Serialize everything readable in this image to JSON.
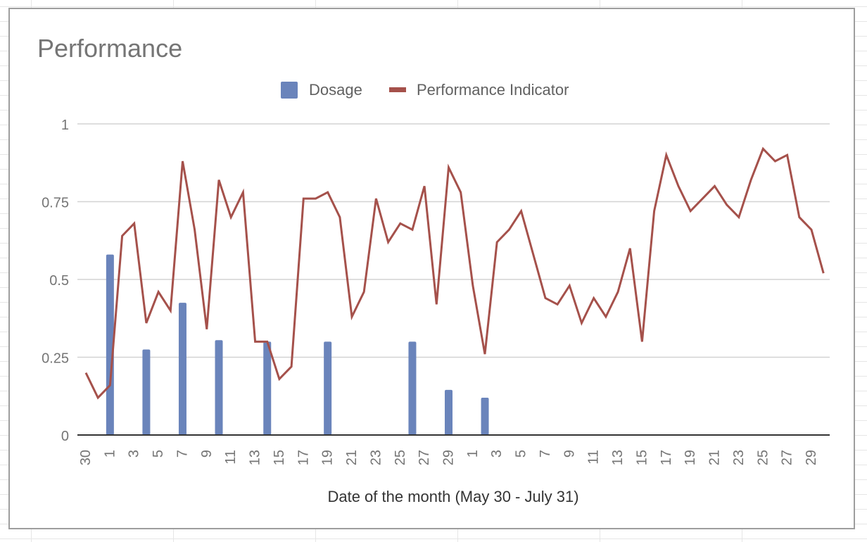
{
  "chart_data": {
    "type": "bar+line",
    "title": "Performance",
    "xlabel": "Date of the month (May 30 - July 31)",
    "ylabel": "",
    "ylim": [
      0,
      1
    ],
    "yticks": [
      {
        "value": 0,
        "label": "0"
      },
      {
        "value": 0.25,
        "label": "0.25"
      },
      {
        "value": 0.5,
        "label": "0.5"
      },
      {
        "value": 0.75,
        "label": "0.75"
      },
      {
        "value": 1,
        "label": "1"
      }
    ],
    "legend_position": "top-center",
    "grid": true,
    "categories": [
      "30",
      "31",
      "1",
      "2",
      "3",
      "4",
      "5",
      "6",
      "7",
      "8",
      "9",
      "10",
      "11",
      "12",
      "13",
      "14",
      "15",
      "16",
      "17",
      "18",
      "19",
      "20",
      "21",
      "22",
      "23",
      "24",
      "25",
      "26",
      "27",
      "28",
      "29",
      "30",
      "1",
      "2",
      "3",
      "4",
      "5",
      "6",
      "7",
      "8",
      "9",
      "10",
      "11",
      "12",
      "13",
      "14",
      "15",
      "16",
      "17",
      "18",
      "19",
      "20",
      "21",
      "22",
      "23",
      "24",
      "25",
      "26",
      "27",
      "28",
      "29",
      "30",
      "31"
    ],
    "tick_labels": [
      "30",
      "",
      "1",
      "",
      "3",
      "",
      "5",
      "",
      "7",
      "",
      "9",
      "",
      "11",
      "",
      "13",
      "",
      "15",
      "",
      "17",
      "",
      "19",
      "",
      "21",
      "",
      "23",
      "",
      "25",
      "",
      "27",
      "",
      "29",
      "",
      "1",
      "",
      "3",
      "",
      "5",
      "",
      "7",
      "",
      "9",
      "",
      "11",
      "",
      "13",
      "",
      "15",
      "",
      "17",
      "",
      "19",
      "",
      "21",
      "",
      "23",
      "",
      "25",
      "",
      "27",
      "",
      "29",
      "",
      ""
    ],
    "series": [
      {
        "name": "Dosage",
        "type": "bar",
        "color": "#6a84bb",
        "values": [
          null,
          null,
          0.58,
          null,
          null,
          0.275,
          null,
          null,
          0.425,
          null,
          null,
          0.305,
          null,
          null,
          null,
          0.3,
          null,
          null,
          null,
          null,
          0.3,
          null,
          null,
          null,
          null,
          null,
          null,
          0.3,
          null,
          null,
          0.145,
          null,
          null,
          0.12,
          null,
          null,
          null,
          null,
          null,
          null,
          null,
          null,
          null,
          null,
          null,
          null,
          null,
          null,
          null,
          null,
          null,
          null,
          null,
          null,
          null,
          null,
          null,
          null,
          null,
          null,
          null,
          null,
          null
        ]
      },
      {
        "name": "Performance Indicator",
        "type": "line",
        "color": "#a5514b",
        "values": [
          0.2,
          0.12,
          0.16,
          0.64,
          0.68,
          0.36,
          0.46,
          0.4,
          0.88,
          0.66,
          0.34,
          0.82,
          0.7,
          0.78,
          0.3,
          0.3,
          0.18,
          0.22,
          0.76,
          0.76,
          0.78,
          0.7,
          0.38,
          0.46,
          0.76,
          0.62,
          0.68,
          0.66,
          0.8,
          0.42,
          0.86,
          0.78,
          0.48,
          0.26,
          0.62,
          0.66,
          0.72,
          0.58,
          0.44,
          0.42,
          0.48,
          0.36,
          0.44,
          0.38,
          0.46,
          0.6,
          0.3,
          0.72,
          0.9,
          0.8,
          0.72,
          0.76,
          0.8,
          0.74,
          0.7,
          0.82,
          0.92,
          0.88,
          0.9,
          0.7,
          0.66,
          0.52,
          null
        ]
      }
    ]
  }
}
